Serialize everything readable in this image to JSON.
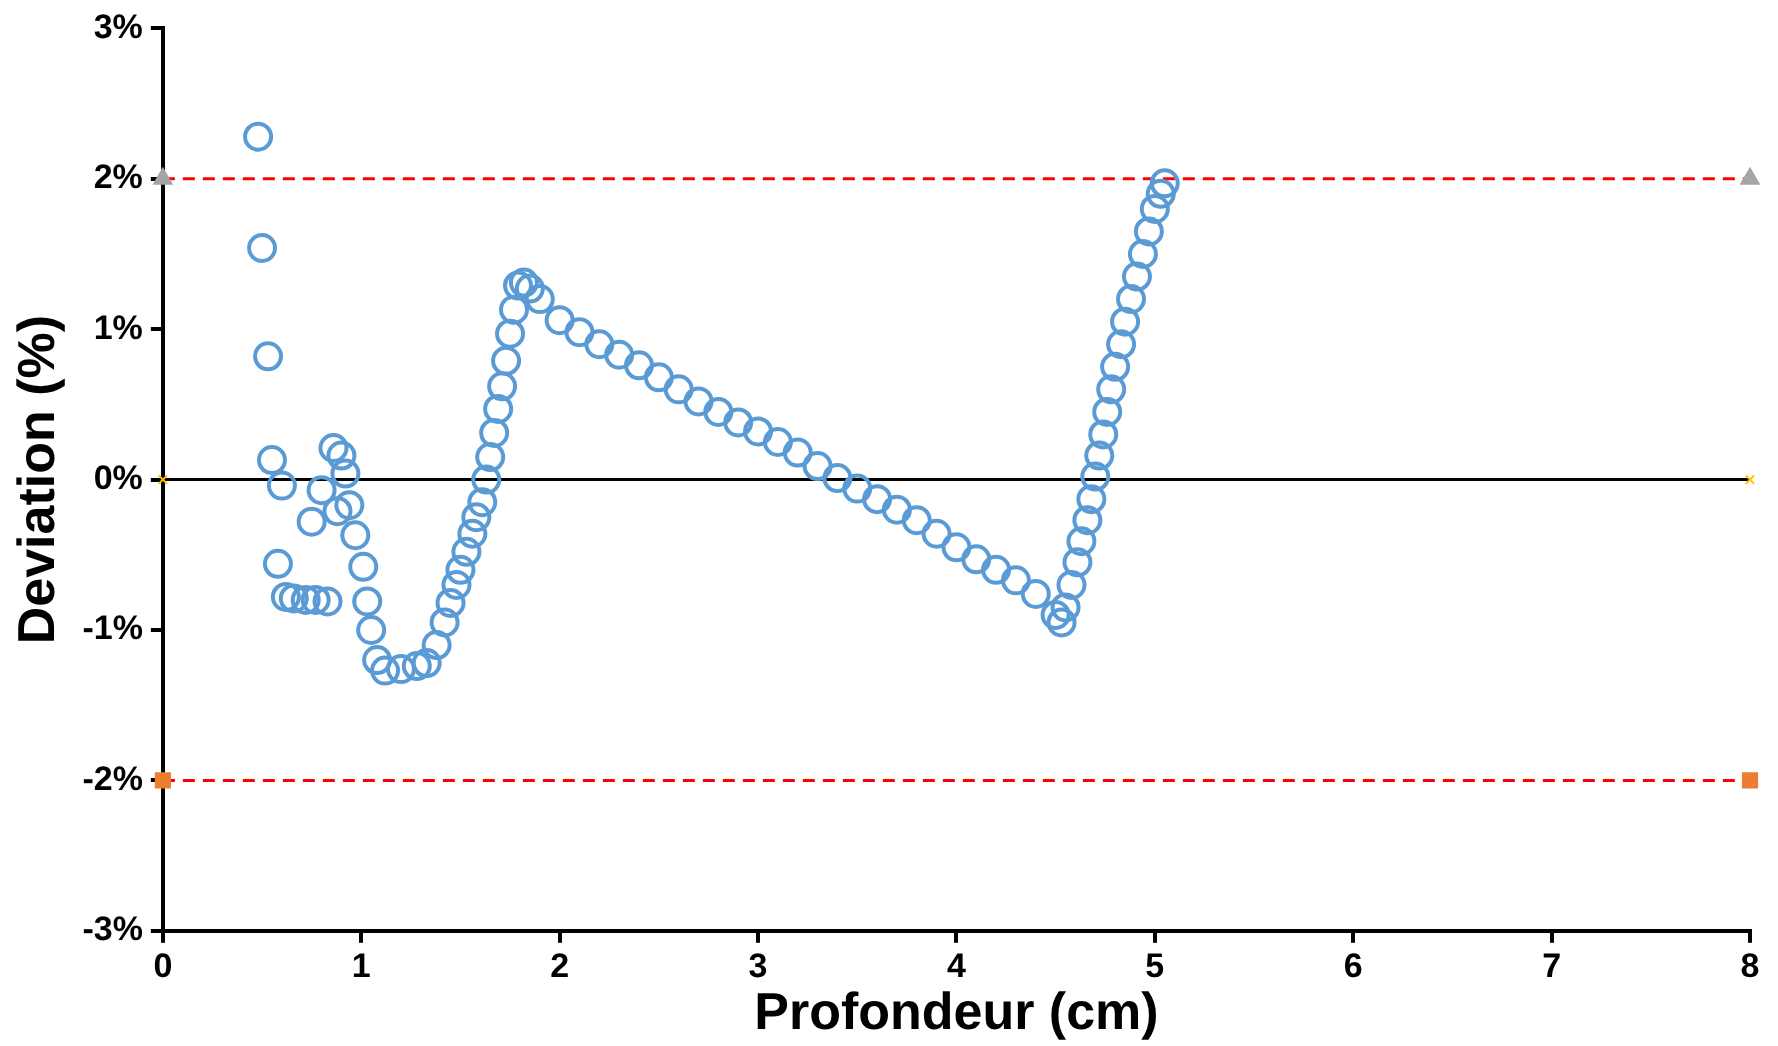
{
  "chart_data": {
    "type": "scatter",
    "xlabel": "Profondeur (cm)",
    "ylabel": "Deviation (%)",
    "xlim": [
      0,
      8
    ],
    "xticks": [
      0,
      1,
      2,
      3,
      4,
      5,
      6,
      7,
      8
    ],
    "ylim": [
      -3,
      3
    ],
    "yticks": [
      {
        "value": -3,
        "label": "-3%"
      },
      {
        "value": -2,
        "label": "-2%"
      },
      {
        "value": -1,
        "label": "-1%"
      },
      {
        "value": 0,
        "label": "0%"
      },
      {
        "value": 1,
        "label": "1%"
      },
      {
        "value": 2,
        "label": "2%"
      },
      {
        "value": 3,
        "label": "3%"
      }
    ],
    "grid": false,
    "legend": false,
    "ref_lines": [
      {
        "axis": "y",
        "value": 2,
        "color": "#ff0000",
        "line_style": "dashed"
      },
      {
        "axis": "y",
        "value": -2,
        "color": "#ff0000",
        "line_style": "dashed"
      },
      {
        "axis": "y",
        "value": 0,
        "color": "#000000",
        "line_style": "solid"
      }
    ],
    "series": [
      {
        "marker": "circle",
        "color": "#5b9bd5",
        "x": [
          0.48,
          0.5,
          0.53,
          0.55,
          0.6,
          0.58,
          0.62,
          0.66,
          0.72,
          0.77,
          0.83,
          0.75,
          0.8,
          0.86,
          0.9,
          0.92,
          0.88,
          0.94,
          0.97,
          1.01,
          1.03,
          1.05,
          1.08,
          1.12,
          1.2,
          1.28,
          1.33,
          1.38,
          1.42,
          1.45,
          1.48,
          1.5,
          1.53,
          1.56,
          1.58,
          1.61,
          1.63,
          1.65,
          1.67,
          1.69,
          1.71,
          1.73,
          1.75,
          1.77,
          1.79,
          1.82,
          1.85,
          1.9,
          2.0,
          2.1,
          2.2,
          2.3,
          2.4,
          2.5,
          2.6,
          2.7,
          2.8,
          2.9,
          3.0,
          3.1,
          3.2,
          3.3,
          3.4,
          3.5,
          3.6,
          3.7,
          3.8,
          3.9,
          4.0,
          4.1,
          4.2,
          4.3,
          4.4,
          4.5,
          4.53,
          4.55,
          4.58,
          4.61,
          4.63,
          4.66,
          4.68,
          4.7,
          4.72,
          4.74,
          4.76,
          4.78,
          4.8,
          4.83,
          4.85,
          4.88,
          4.91,
          4.94,
          4.97,
          5.0,
          5.03,
          5.05
        ],
        "values": [
          2.28,
          1.54,
          0.82,
          0.13,
          -0.04,
          -0.56,
          -0.78,
          -0.79,
          -0.8,
          -0.8,
          -0.81,
          -0.28,
          -0.07,
          0.21,
          0.16,
          0.04,
          -0.21,
          -0.17,
          -0.37,
          -0.58,
          -0.81,
          -1.0,
          -1.2,
          -1.27,
          -1.26,
          -1.24,
          -1.22,
          -1.1,
          -0.95,
          -0.82,
          -0.7,
          -0.6,
          -0.48,
          -0.36,
          -0.25,
          -0.15,
          0.0,
          0.15,
          0.31,
          0.47,
          0.62,
          0.79,
          0.97,
          1.13,
          1.29,
          1.31,
          1.27,
          1.2,
          1.06,
          0.98,
          0.9,
          0.83,
          0.76,
          0.68,
          0.6,
          0.52,
          0.45,
          0.38,
          0.32,
          0.25,
          0.18,
          0.09,
          0.01,
          -0.06,
          -0.13,
          -0.2,
          -0.27,
          -0.36,
          -0.45,
          -0.53,
          -0.6,
          -0.67,
          -0.76,
          -0.9,
          -0.95,
          -0.85,
          -0.7,
          -0.55,
          -0.41,
          -0.27,
          -0.13,
          0.02,
          0.16,
          0.3,
          0.45,
          0.6,
          0.75,
          0.9,
          1.05,
          1.2,
          1.35,
          1.5,
          1.65,
          1.8,
          1.9,
          1.97
        ]
      },
      {
        "type": "scatter",
        "marker": "triangle",
        "color": "#a5a5a5",
        "x": [
          0,
          8
        ],
        "values": [
          2,
          2
        ]
      },
      {
        "type": "scatter",
        "marker": "square",
        "color": "#ed7d31",
        "x": [
          0,
          8
        ],
        "values": [
          -2,
          -2
        ]
      },
      {
        "type": "scatter",
        "marker": "cross",
        "color": "#ffc000",
        "x": [
          0,
          8
        ],
        "values": [
          0,
          0
        ]
      }
    ]
  }
}
